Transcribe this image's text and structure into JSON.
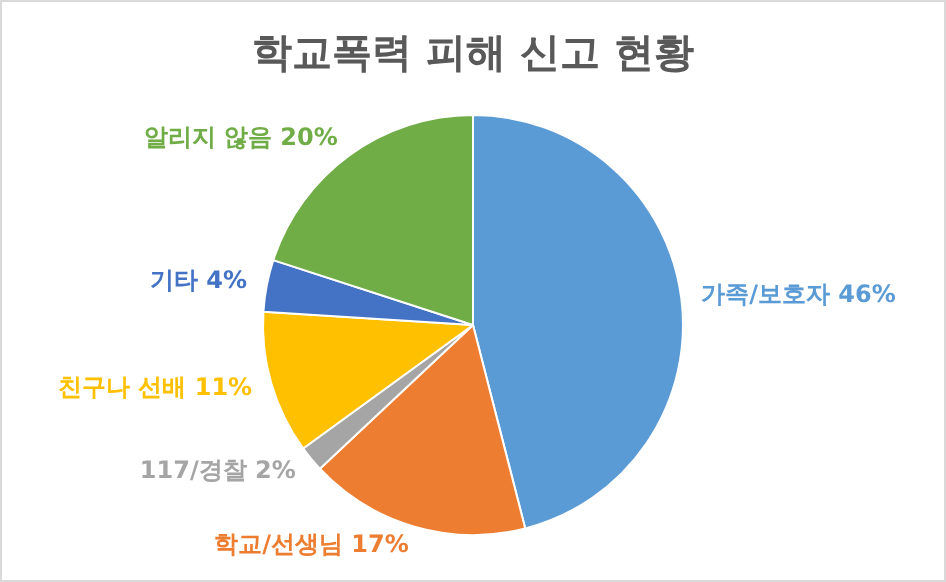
{
  "chart_data": {
    "type": "pie",
    "title": "학교폭력 피해 신고 현황",
    "categories": [
      "가족/보호자",
      "학교/선생님",
      "117/경찰",
      "친구나 선배",
      "기타",
      "알리지 않음"
    ],
    "values": [
      46,
      17,
      2,
      11,
      4,
      20
    ],
    "colors": [
      "#5b9bd5",
      "#ed7d31",
      "#a5a5a5",
      "#ffc000",
      "#4472c4",
      "#70ad47"
    ],
    "value_labels": [
      "46%",
      "17%",
      "2%",
      "11%",
      "4%",
      "20%"
    ],
    "legend": false
  }
}
